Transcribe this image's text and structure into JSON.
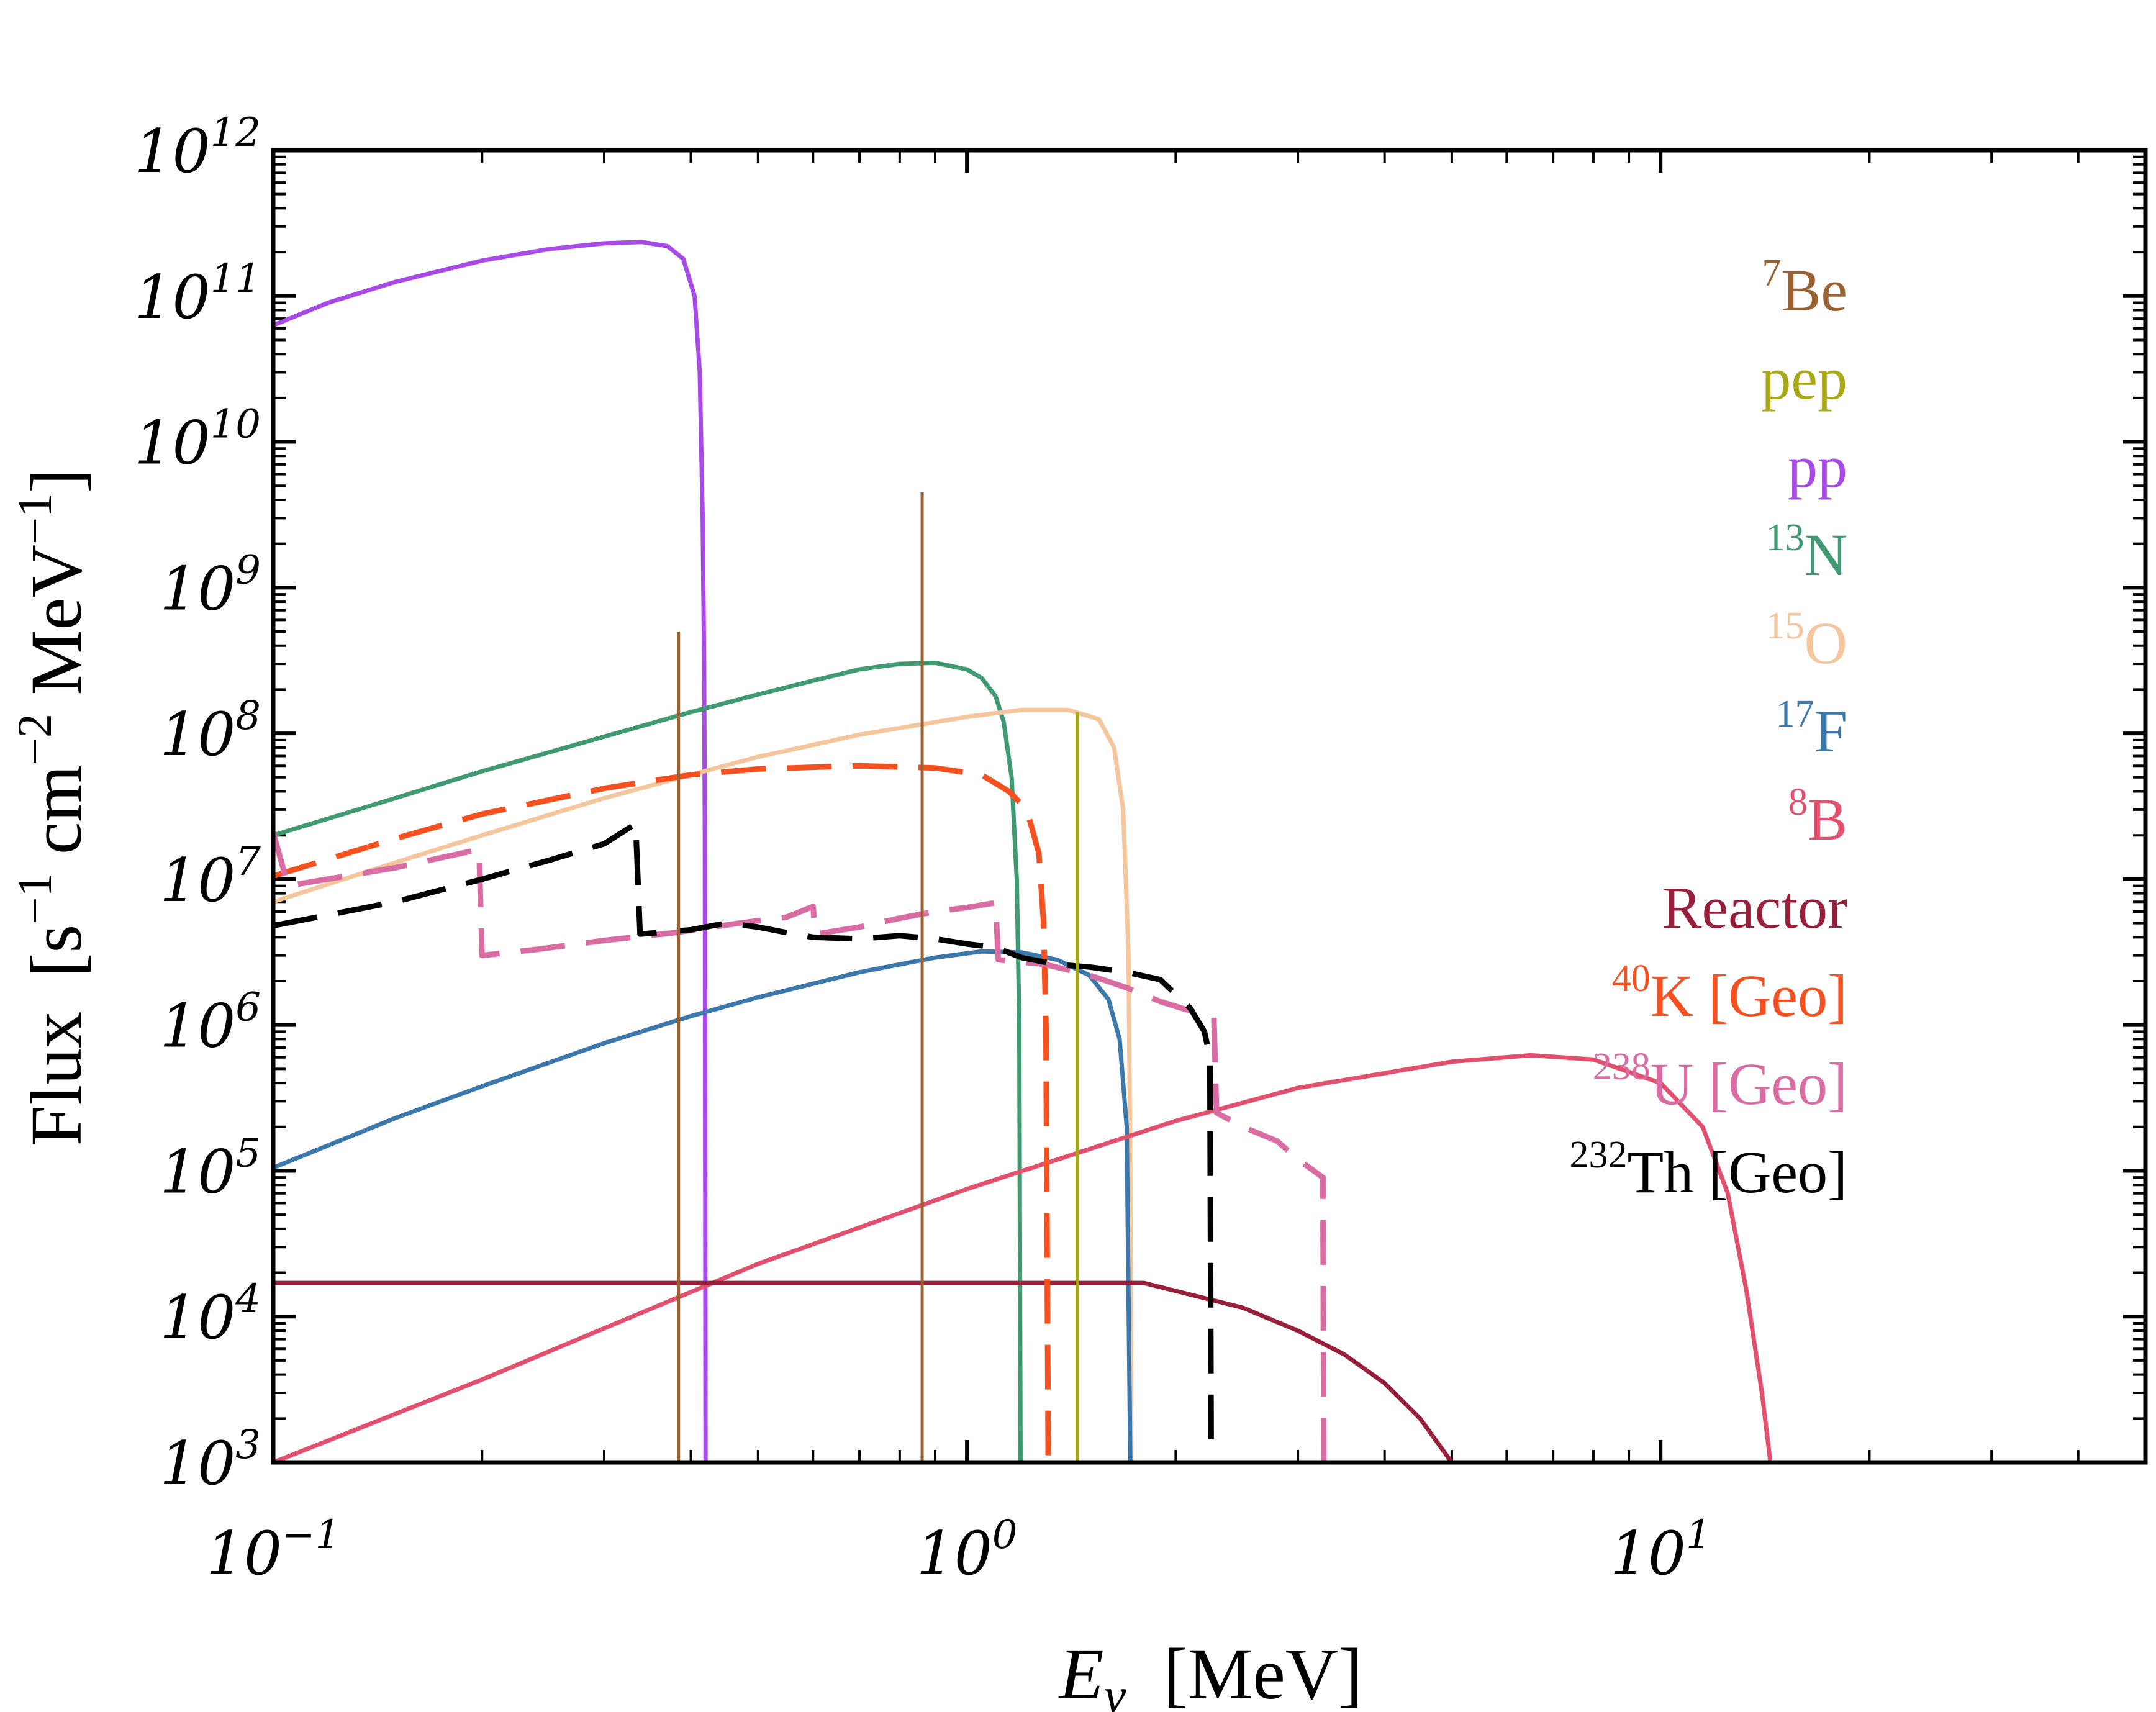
{
  "chart_data": {
    "type": "line",
    "x_scale": "log",
    "y_scale": "log",
    "xlim": [
      0.1,
      50
    ],
    "ylim": [
      1000,
      1000000000000
    ],
    "xlabel": {
      "symbol": "E",
      "subscript": "ν",
      "unit": "[MeV]"
    },
    "ylabel": {
      "main": "Flux",
      "unit_prefix": "[s",
      "exp1": "−1",
      "mid": " cm",
      "exp2": "−2",
      "unit_mid": " MeV",
      "exp3": "−1",
      "unit_close": "]"
    },
    "x_ticks": [
      {
        "value": 0.1,
        "base": "10",
        "exp": "−1"
      },
      {
        "value": 1,
        "base": "10",
        "exp": "0"
      },
      {
        "value": 10,
        "base": "10",
        "exp": "1"
      }
    ],
    "y_ticks": [
      {
        "value": 1000,
        "base": "10",
        "exp": "3"
      },
      {
        "value": 10000,
        "base": "10",
        "exp": "4"
      },
      {
        "value": 100000,
        "base": "10",
        "exp": "5"
      },
      {
        "value": 1000000,
        "base": "10",
        "exp": "6"
      },
      {
        "value": 10000000,
        "base": "10",
        "exp": "7"
      },
      {
        "value": 100000000,
        "base": "10",
        "exp": "8"
      },
      {
        "value": 1000000000,
        "base": "10",
        "exp": "9"
      },
      {
        "value": 10000000000,
        "base": "10",
        "exp": "10"
      },
      {
        "value": 100000000000,
        "base": "10",
        "exp": "11"
      },
      {
        "value": 1000000000000,
        "base": "10",
        "exp": "12"
      }
    ],
    "legend": [
      {
        "sup": "7",
        "text": "Be",
        "color": "#9a6232"
      },
      {
        "sup": "",
        "text": "pep",
        "color": "#a9a918"
      },
      {
        "sup": "",
        "text": "pp",
        "color": "#a84be6"
      },
      {
        "sup": "13",
        "text": "N",
        "color": "#3f9a72"
      },
      {
        "sup": "15",
        "text": "O",
        "color": "#f5c59c"
      },
      {
        "sup": "17",
        "text": "F",
        "color": "#3c78ab"
      },
      {
        "sup": "8",
        "text": "B",
        "color": "#e2506e"
      },
      {
        "sup": "",
        "text": "Reactor",
        "color": "#981f3a"
      },
      {
        "sup": "40",
        "text": "K [Geo]",
        "color": "#f5501f"
      },
      {
        "sup": "238",
        "text": "U [Geo]",
        "color": "#d96ca3"
      },
      {
        "sup": "232",
        "text": "Th [Geo]",
        "color": "#000000"
      }
    ],
    "series": [
      {
        "name": "pp",
        "color": "#a84be6",
        "dashed": false,
        "points": [
          [
            0.1,
            63000000000.0
          ],
          [
            0.12,
            90000000000.0
          ],
          [
            0.15,
            125000000000.0
          ],
          [
            0.2,
            175000000000.0
          ],
          [
            0.25,
            210000000000.0
          ],
          [
            0.3,
            230000000000.0
          ],
          [
            0.34,
            235000000000.0
          ],
          [
            0.37,
            220000000000.0
          ],
          [
            0.39,
            180000000000.0
          ],
          [
            0.405,
            100000000000.0
          ],
          [
            0.412,
            30000000000.0
          ],
          [
            0.416,
            3000000000.0
          ],
          [
            0.418,
            300000000.0
          ],
          [
            0.419,
            20000000.0
          ],
          [
            0.42,
            1000.0
          ]
        ]
      },
      {
        "name": "13N",
        "color": "#3f9a72",
        "dashed": false,
        "points": [
          [
            0.1,
            20000000.0
          ],
          [
            0.15,
            36000000.0
          ],
          [
            0.2,
            55000000.0
          ],
          [
            0.3,
            95000000.0
          ],
          [
            0.4,
            140000000.0
          ],
          [
            0.5,
            185000000.0
          ],
          [
            0.6,
            230000000.0
          ],
          [
            0.7,
            275000000.0
          ],
          [
            0.8,
            300000000.0
          ],
          [
            0.9,
            305000000.0
          ],
          [
            1.0,
            275000000.0
          ],
          [
            1.05,
            240000000.0
          ],
          [
            1.1,
            180000000.0
          ],
          [
            1.13,
            120000000.0
          ],
          [
            1.16,
            50000000.0
          ],
          [
            1.18,
            10000000.0
          ],
          [
            1.19,
            1000000.0
          ],
          [
            1.195,
            1000.0
          ]
        ]
      },
      {
        "name": "15O",
        "color": "#f5c59c",
        "dashed": false,
        "points": [
          [
            0.1,
            7000000.0
          ],
          [
            0.15,
            13000000.0
          ],
          [
            0.2,
            20000000.0
          ],
          [
            0.3,
            36000000.0
          ],
          [
            0.4,
            52000000.0
          ],
          [
            0.5,
            69000000.0
          ],
          [
            0.7,
            98000000.0
          ],
          [
            1.0,
            130000000.0
          ],
          [
            1.2,
            145000000.0
          ],
          [
            1.4,
            145000000.0
          ],
          [
            1.55,
            125000000.0
          ],
          [
            1.63,
            80000000.0
          ],
          [
            1.68,
            30000000.0
          ],
          [
            1.71,
            3000000.0
          ],
          [
            1.72,
            100000.0
          ],
          [
            1.725,
            1000.0
          ]
        ]
      },
      {
        "name": "17F",
        "color": "#3c78ab",
        "dashed": false,
        "points": [
          [
            0.1,
            105000.0
          ],
          [
            0.15,
            230000.0
          ],
          [
            0.2,
            380000.0
          ],
          [
            0.3,
            750000.0
          ],
          [
            0.4,
            1150000.0
          ],
          [
            0.5,
            1550000.0
          ],
          [
            0.7,
            2300000.0
          ],
          [
            0.9,
            2900000.0
          ],
          [
            1.05,
            3200000.0
          ],
          [
            1.2,
            3150000.0
          ],
          [
            1.35,
            2800000.0
          ],
          [
            1.5,
            2200000.0
          ],
          [
            1.6,
            1500000.0
          ],
          [
            1.66,
            800000.0
          ],
          [
            1.7,
            200000.0
          ],
          [
            1.72,
            1000.0
          ]
        ]
      },
      {
        "name": "8B",
        "color": "#e2506e",
        "dashed": false,
        "points": [
          [
            0.1,
            1000.0
          ],
          [
            0.2,
            3700.0
          ],
          [
            0.5,
            23000.0
          ],
          [
            1,
            75000.0
          ],
          [
            2,
            220000.0
          ],
          [
            3,
            370000.0
          ],
          [
            5,
            560000.0
          ],
          [
            6.5,
            620000.0
          ],
          [
            8,
            580000.0
          ],
          [
            10,
            400000.0
          ],
          [
            11.5,
            200000.0
          ],
          [
            12.5,
            70000.0
          ],
          [
            13.3,
            15000.0
          ],
          [
            14,
            3000.0
          ],
          [
            14.4,
            1000.0
          ]
        ]
      },
      {
        "name": "Reactor",
        "color": "#981f3a",
        "dashed": false,
        "points": [
          [
            0.1,
            17000.0
          ],
          [
            1.8,
            17000.0
          ],
          [
            2.5,
            11500.0
          ],
          [
            3,
            8000.0
          ],
          [
            3.5,
            5500.0
          ],
          [
            4,
            3500.0
          ],
          [
            4.5,
            2000.0
          ],
          [
            5,
            1000.0
          ]
        ]
      },
      {
        "name": "40K [Geo]",
        "color": "#f5501f",
        "dashed": true,
        "points": [
          [
            0.1,
            10500000.0
          ],
          [
            0.15,
            19000000.0
          ],
          [
            0.2,
            28000000.0
          ],
          [
            0.3,
            42000000.0
          ],
          [
            0.4,
            52000000.0
          ],
          [
            0.5,
            57000000.0
          ],
          [
            0.7,
            60000000.0
          ],
          [
            0.9,
            58000000.0
          ],
          [
            1.05,
            52000000.0
          ],
          [
            1.15,
            40000000.0
          ],
          [
            1.22,
            30000000.0
          ],
          [
            1.27,
            15000000.0
          ],
          [
            1.29,
            5000000.0
          ],
          [
            1.3,
            1000000.0
          ],
          [
            1.31,
            1000.0
          ]
        ]
      },
      {
        "name": "238U [Geo]",
        "color": "#d96ca3",
        "dashed": true,
        "points": [
          [
            0.1,
            21000000.0
          ],
          [
            0.105,
            9000000.0
          ],
          [
            0.15,
            12000000.0
          ],
          [
            0.198,
            16000000.0
          ],
          [
            0.2,
            3000000.0
          ],
          [
            0.24,
            3300000.0
          ],
          [
            0.3,
            3800000.0
          ],
          [
            0.38,
            4300000.0
          ],
          [
            0.47,
            5000000.0
          ],
          [
            0.55,
            5500000.0
          ],
          [
            0.6,
            6500000.0
          ],
          [
            0.605,
            4200000.0
          ],
          [
            0.7,
            4700000.0
          ],
          [
            0.8,
            5400000.0
          ],
          [
            0.9,
            6000000.0
          ],
          [
            1.0,
            6400000.0
          ],
          [
            1.1,
            6900000.0
          ],
          [
            1.11,
            2800000.0
          ],
          [
            1.3,
            2600000.0
          ],
          [
            1.5,
            2200000.0
          ],
          [
            1.7,
            1800000.0
          ],
          [
            1.9,
            1450000.0
          ],
          [
            2.1,
            1250000.0
          ],
          [
            2.27,
            1150000.0
          ],
          [
            2.29,
            250000.0
          ],
          [
            2.5,
            200000.0
          ],
          [
            2.8,
            160000.0
          ],
          [
            3.0,
            120000.0
          ],
          [
            3.26,
            90000.0
          ],
          [
            3.27,
            1000.0
          ]
        ]
      },
      {
        "name": "232Th [Geo]",
        "color": "#000000",
        "dashed": true,
        "points": [
          [
            0.1,
            4800000.0
          ],
          [
            0.15,
            7000000.0
          ],
          [
            0.2,
            10000000.0
          ],
          [
            0.25,
            13500000.0
          ],
          [
            0.3,
            17500000.0
          ],
          [
            0.333,
            24000000.0
          ],
          [
            0.338,
            4200000.0
          ],
          [
            0.4,
            4500000.0
          ],
          [
            0.45,
            5000000.0
          ],
          [
            0.5,
            4700000.0
          ],
          [
            0.55,
            4300000.0
          ],
          [
            0.6,
            4000000.0
          ],
          [
            0.7,
            3900000.0
          ],
          [
            0.8,
            4100000.0
          ],
          [
            0.9,
            3900000.0
          ],
          [
            1.0,
            3600000.0
          ],
          [
            1.1,
            3400000.0
          ],
          [
            1.2,
            2900000.0
          ],
          [
            1.35,
            2600000.0
          ],
          [
            1.5,
            2500000.0
          ],
          [
            1.7,
            2300000.0
          ],
          [
            1.9,
            2050000.0
          ],
          [
            2.1,
            1300000.0
          ],
          [
            2.2,
            900000.0
          ],
          [
            2.24,
            600000.0
          ],
          [
            2.25,
            1000.0
          ]
        ]
      },
      {
        "name": "7Be (0.38 MeV)",
        "color": "#9a6232",
        "dashed": false,
        "line_x": 0.384,
        "line_y": 500000000.0
      },
      {
        "name": "7Be (0.86 MeV)",
        "color": "#9a6232",
        "dashed": false,
        "line_x": 0.862,
        "line_y": 4500000000.0
      },
      {
        "name": "pep",
        "color": "#a9a918",
        "dashed": false,
        "line_x": 1.442,
        "line_y": 140000000.0
      }
    ]
  }
}
